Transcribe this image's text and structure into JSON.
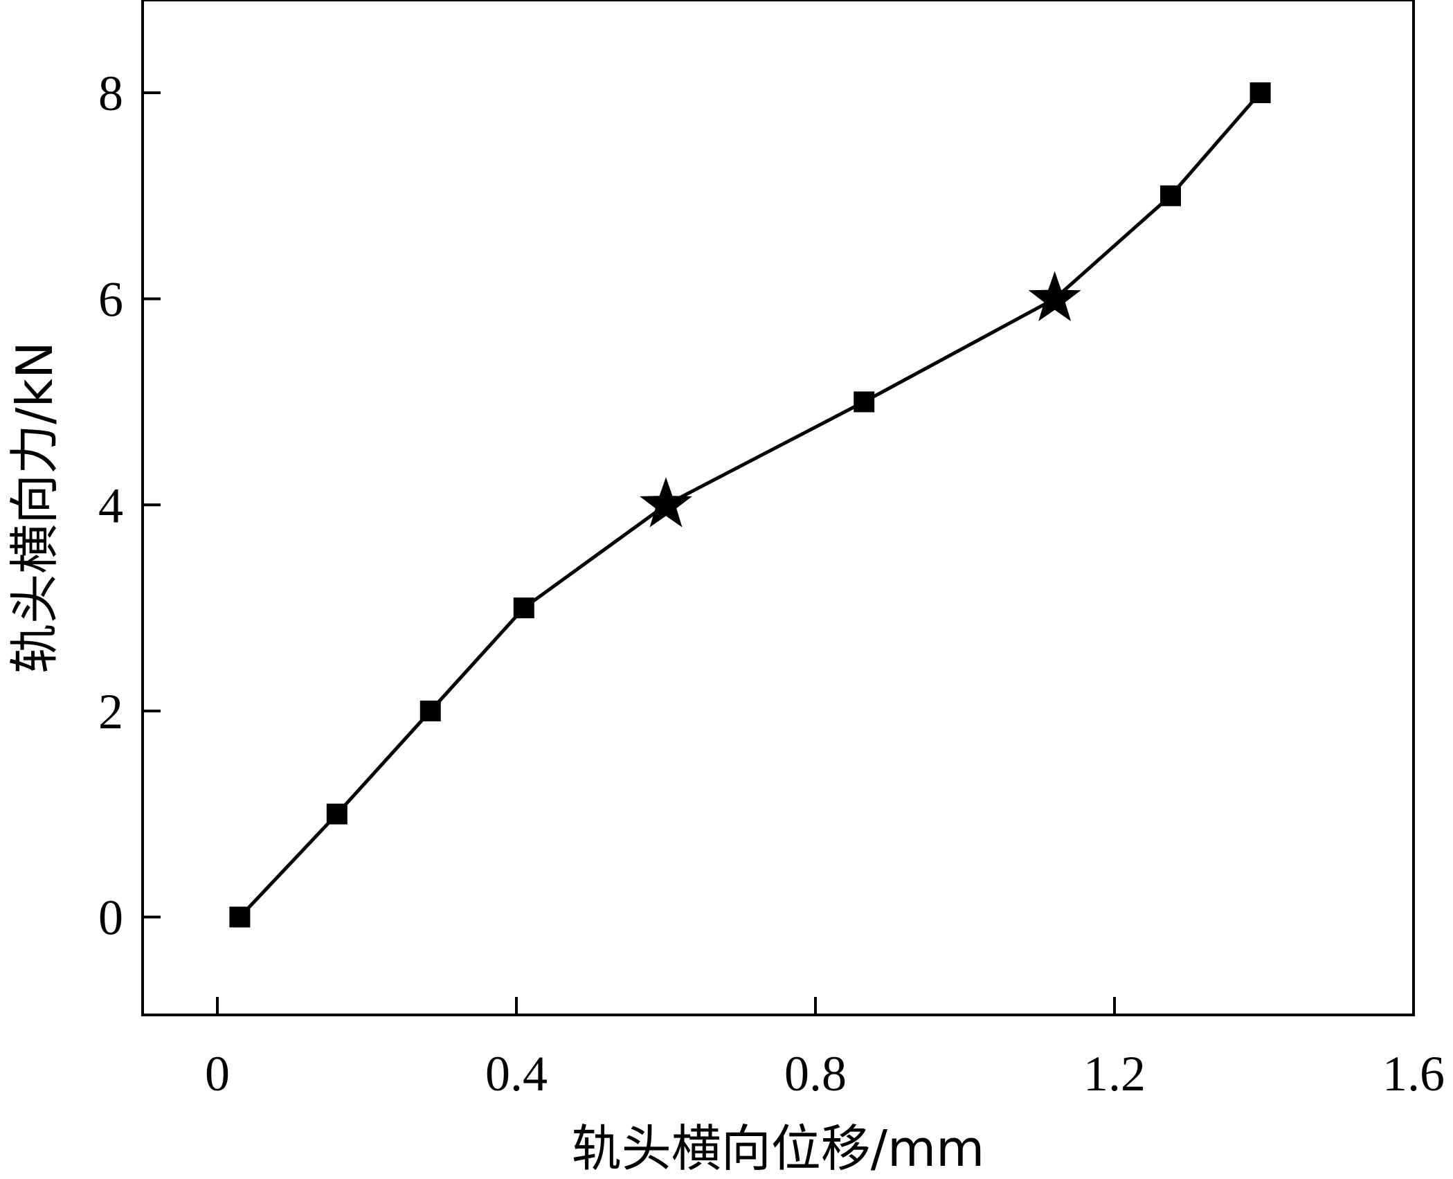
{
  "chart_data": {
    "type": "line",
    "title": "",
    "xlabel": "轨头横向位移/mm",
    "ylabel": "轨头横向力/kN",
    "xlim": [
      -0.1,
      1.6
    ],
    "ylim": [
      -0.95,
      8.9
    ],
    "xticks": [
      0,
      0.4,
      0.8,
      1.2,
      1.6
    ],
    "xtick_labels": [
      "0",
      "0.4",
      "0.8",
      "1.2",
      "1.6"
    ],
    "yticks": [
      0,
      2,
      4,
      6,
      8
    ],
    "ytick_labels": [
      "0",
      "2",
      "4",
      "6",
      "8"
    ],
    "grid": false,
    "legend": "none",
    "series": [
      {
        "color": "#000000",
        "points": [
          {
            "x": 0.03,
            "y": 0.0,
            "marker": "square"
          },
          {
            "x": 0.16,
            "y": 1.0,
            "marker": "square"
          },
          {
            "x": 0.285,
            "y": 2.0,
            "marker": "square"
          },
          {
            "x": 0.41,
            "y": 3.0,
            "marker": "square"
          },
          {
            "x": 0.6,
            "y": 4.0,
            "marker": "star"
          },
          {
            "x": 0.865,
            "y": 5.0,
            "marker": "square"
          },
          {
            "x": 1.12,
            "y": 6.0,
            "marker": "star"
          },
          {
            "x": 1.275,
            "y": 7.0,
            "marker": "square"
          },
          {
            "x": 1.395,
            "y": 8.0,
            "marker": "square"
          }
        ]
      }
    ]
  }
}
